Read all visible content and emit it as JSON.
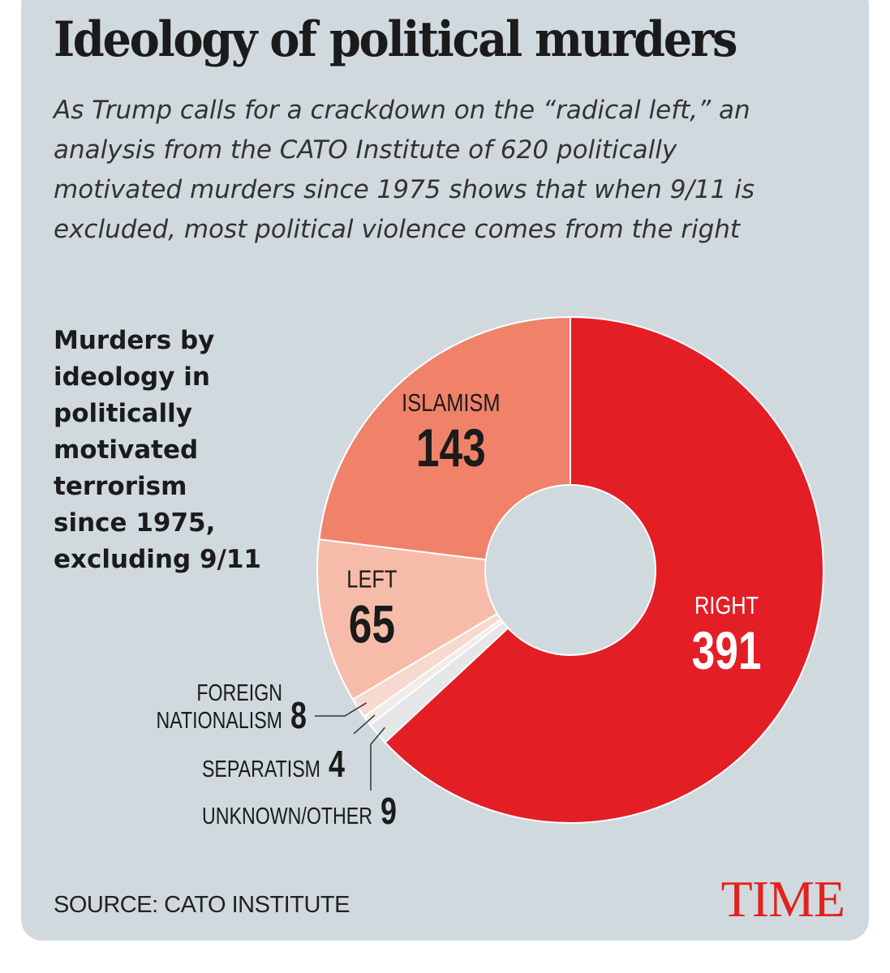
{
  "header": {
    "title": "Ideology of political murders",
    "subtitle": "As Trump calls for a crackdown on the “radical left,” an analysis from the CATO Institute of 620 politically motivated murders since 1975 shows that when 9/11 is excluded, most political violence comes from the right"
  },
  "chart_heading": "Murders by ideology in politically motivated terrorism since 1975, excluding 9/11",
  "source": "SOURCE: CATO INSTITUTE",
  "logo_text": "TIME",
  "colors": {
    "background": "#d0d9de",
    "right": "#e31e25",
    "islamism": "#f0826a",
    "left": "#f7bca9",
    "foreign_nationalism": "#f7d9cf",
    "separatism": "#f2ece8",
    "unknown_other": "#e4e6e8",
    "brand": "#e0231f"
  },
  "chart_data": {
    "type": "pie",
    "donut": true,
    "title": "Murders by ideology in politically motivated terrorism since 1975, excluding 9/11",
    "slices": [
      {
        "label": "RIGHT",
        "value": 391,
        "color": "#e31e25"
      },
      {
        "label": "UNKNOWN/OTHER",
        "value": 9,
        "color": "#e4e6e8"
      },
      {
        "label": "SEPARATISM",
        "value": 4,
        "color": "#f2ece8"
      },
      {
        "label": "FOREIGN NATIONALISM",
        "value": 8,
        "color": "#f7d9cf"
      },
      {
        "label": "LEFT",
        "value": 65,
        "color": "#f7bca9"
      },
      {
        "label": "ISLAMISM",
        "value": 143,
        "color": "#f0826a"
      }
    ]
  }
}
